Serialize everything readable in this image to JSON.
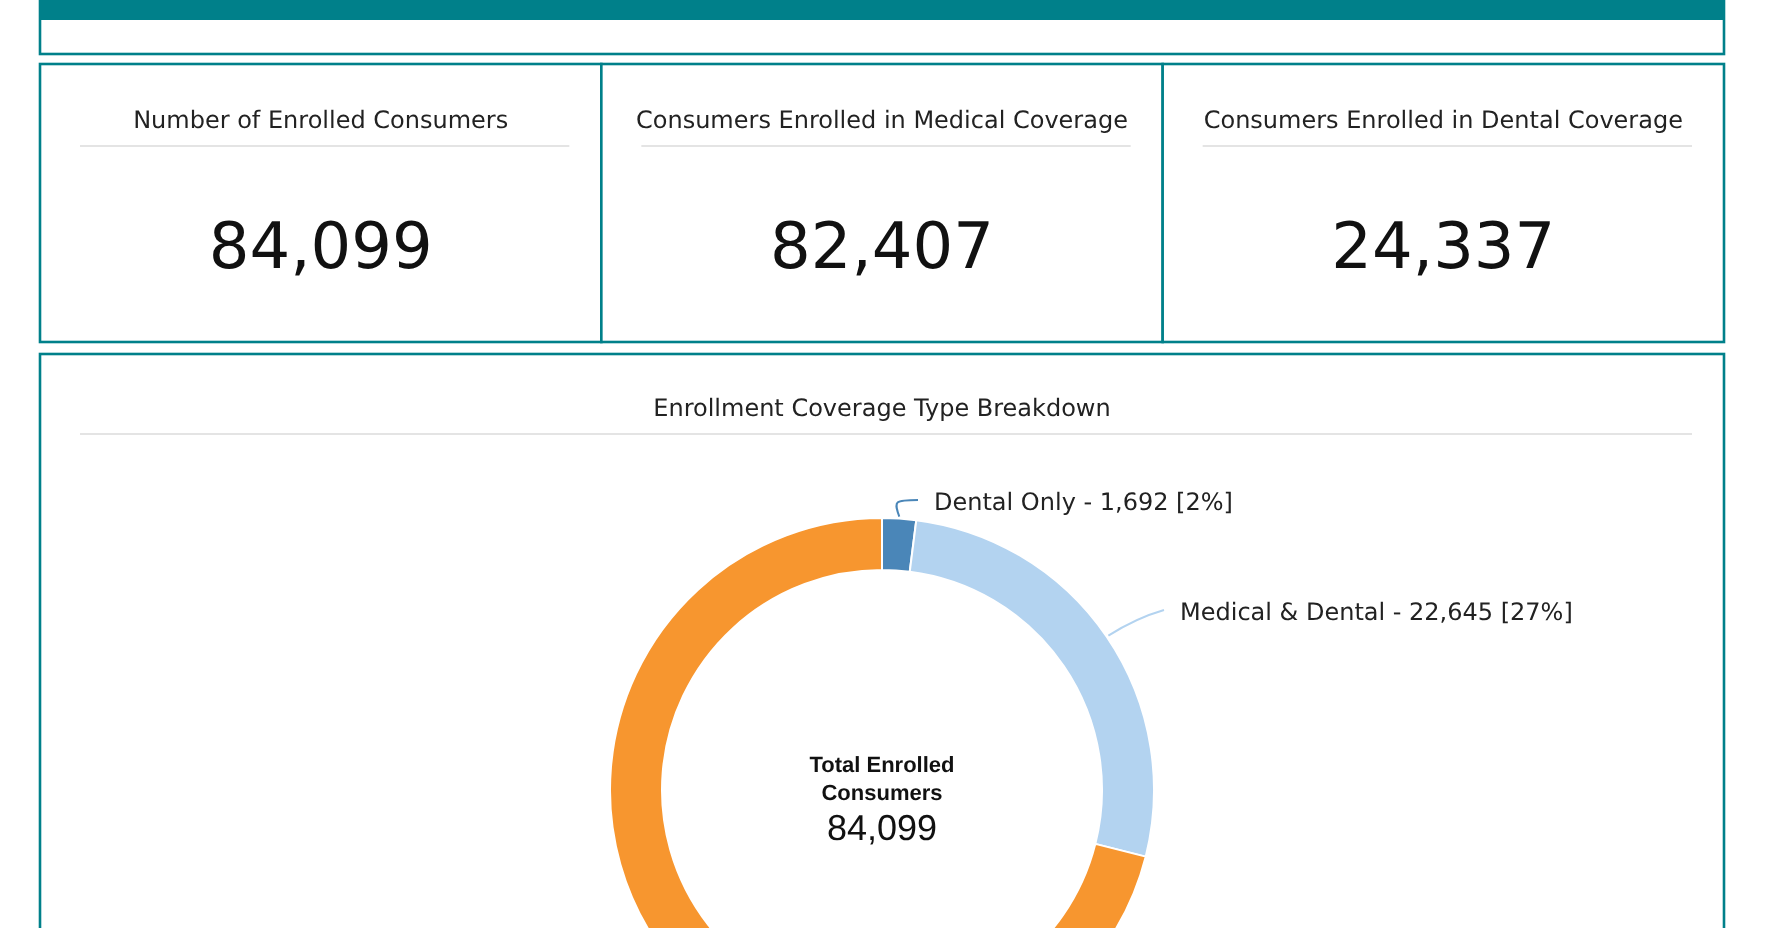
{
  "chart_data": [
    {
      "type": "other",
      "title": "Number of Enrolled Consumers",
      "annotations": [
        "84,099"
      ]
    },
    {
      "type": "other",
      "title": "Consumers Enrolled in Medical Coverage",
      "annotations": [
        "82,407"
      ]
    },
    {
      "type": "other",
      "title": "Consumers Enrolled in Dental Coverage",
      "annotations": [
        "24,337"
      ]
    },
    {
      "type": "donut",
      "title": "Enrollment Coverage Type Breakdown",
      "categories": [
        "Dental Only",
        "Medical & Dental",
        null
      ],
      "values": [
        1692,
        22645,
        59762
      ],
      "value_labels": [
        "1,692 [2%]",
        "22,645 [27%]",
        null
      ],
      "colors": [
        "#4a86b8",
        "#b3d3f0",
        "#f7962f"
      ],
      "annotations": [
        "Total Enrolled Consumers",
        "84,099"
      ]
    }
  ]
}
